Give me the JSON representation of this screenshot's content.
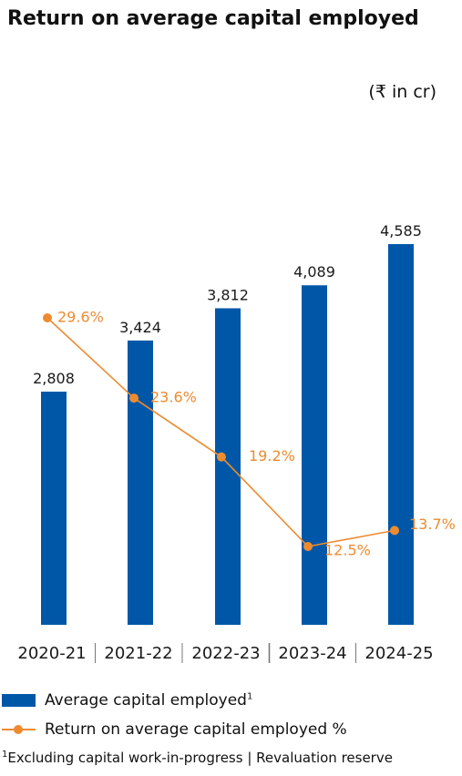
{
  "title": "Return on average capital employed",
  "unit_label": "(₹ in cr)",
  "colors": {
    "bar": "#0057A8",
    "line": "#EE8B2F",
    "text": "#1a1a1a",
    "separator": "#777777"
  },
  "legend": {
    "bar_label": "Average capital employed",
    "bar_label_sup": "1",
    "line_label": "Return on average capital  employed %"
  },
  "footnote": {
    "sup": "1",
    "text": "Excluding capital work-in-progress | Revaluation reserve"
  },
  "chart_data": {
    "type": "bar",
    "categories": [
      "2020-21",
      "2021-22",
      "2022-23",
      "2023-24",
      "2024-25"
    ],
    "series": [
      {
        "name": "Average capital employed",
        "type": "bar",
        "values": [
          2808,
          3424,
          3812,
          4089,
          4585
        ],
        "labels": [
          "2,808",
          "3,424",
          "3,812",
          "4,089",
          "4,585"
        ]
      },
      {
        "name": "Return on average capital  employed %",
        "type": "line",
        "values": [
          29.6,
          23.6,
          19.2,
          12.5,
          13.7
        ],
        "labels": [
          "29.6%",
          "23.6%",
          "19.2%",
          "12.5%",
          "13.7%"
        ]
      }
    ],
    "title": "Return on average capital employed",
    "xlabel": "",
    "ylabel": "",
    "grid": false,
    "legend_position": "bottom-left"
  }
}
